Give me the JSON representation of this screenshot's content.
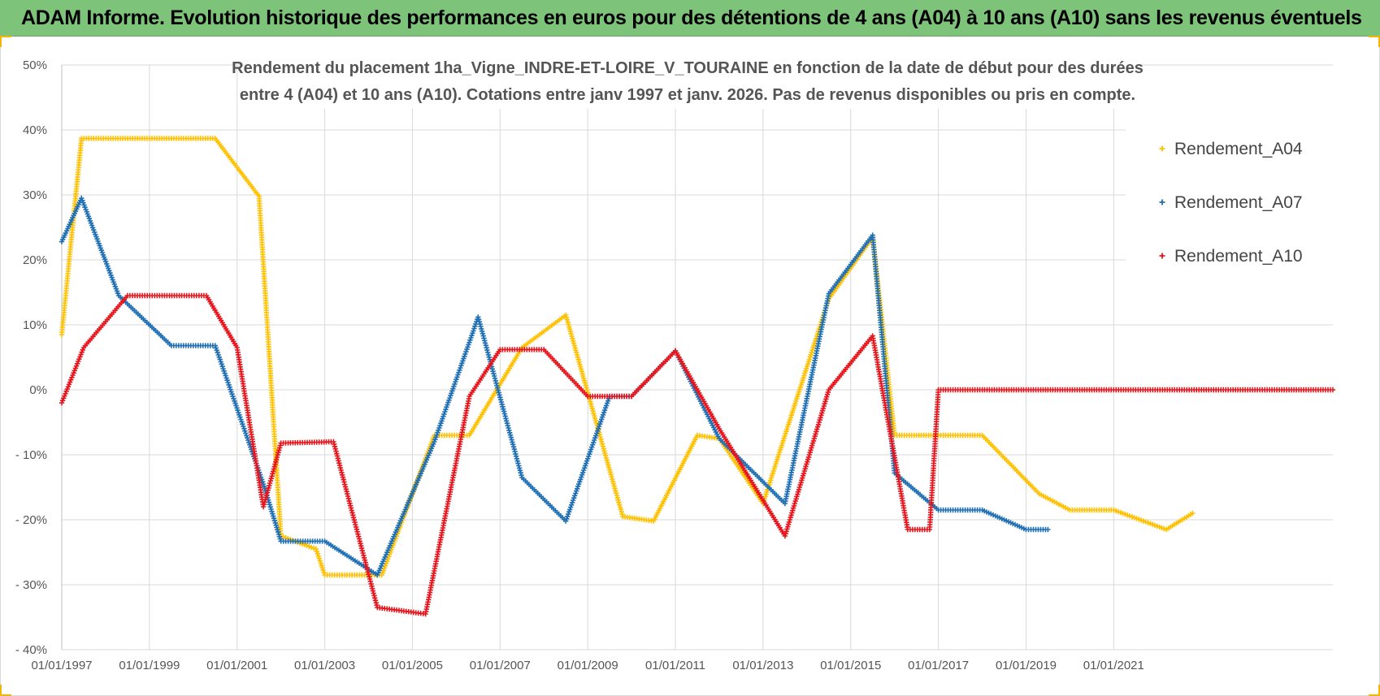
{
  "header": {
    "title": "ADAM Informe. Evolution historique des performances en euros pour des détentions de 4 ans (A04) à 10 ans (A10) sans les revenus éventuels"
  },
  "chart_data": {
    "type": "scatter",
    "title_lines": [
      "Rendement du placement 1ha_Vigne_INDRE-ET-LOIRE_V_TOURAINE en fonction de la date de début pour des durées",
      "entre 4 (A04) et 10 ans (A10).  Cotations entre janv 1997 et janv. 2026. Pas de revenus disponibles ou pris en compte."
    ],
    "xlabel": "",
    "ylabel": "",
    "xlim": [
      1997.0,
      2026.0
    ],
    "ylim": [
      -40,
      50
    ],
    "x_ticks": [
      1997,
      1999,
      2001,
      2003,
      2005,
      2007,
      2009,
      2011,
      2013,
      2015,
      2017,
      2019,
      2021
    ],
    "x_tick_labels": [
      "01/01/1997",
      "01/01/1999",
      "01/01/2001",
      "01/01/2003",
      "01/01/2005",
      "01/01/2007",
      "01/01/2009",
      "01/01/2011",
      "01/01/2013",
      "01/01/2015",
      "01/01/2017",
      "01/01/2019",
      "01/01/2021"
    ],
    "y_ticks": [
      50,
      40,
      30,
      20,
      10,
      0,
      -10,
      -20,
      -30,
      -40
    ],
    "y_tick_labels": [
      "50%",
      "40%",
      "30%",
      "20%",
      "10%",
      "0%",
      "- 10%",
      "- 20%",
      "- 30%",
      "- 40%"
    ],
    "grid": true,
    "legend_position": "top-right",
    "marker": "+",
    "series": [
      {
        "name": "Rendement_A04",
        "color": "#ffc000",
        "points": [
          [
            1997.0,
            8.5
          ],
          [
            1997.2,
            22
          ],
          [
            1997.45,
            38.7
          ],
          [
            2000.5,
            38.7
          ],
          [
            2001.5,
            29.8
          ],
          [
            2002.0,
            -22.5
          ],
          [
            2002.8,
            -24.5
          ],
          [
            2003.0,
            -28.5
          ],
          [
            2004.3,
            -28.5
          ],
          [
            2005.5,
            -7
          ],
          [
            2006.3,
            -7
          ],
          [
            2007.5,
            6.5
          ],
          [
            2008.5,
            11.5
          ],
          [
            2009.8,
            -19.5
          ],
          [
            2010.5,
            -20.2
          ],
          [
            2011.5,
            -7
          ],
          [
            2012.0,
            -7.5
          ],
          [
            2013.0,
            -17.5
          ],
          [
            2014.5,
            14
          ],
          [
            2015.5,
            23.5
          ],
          [
            2016.0,
            -7
          ],
          [
            2017.0,
            -7
          ],
          [
            2018.0,
            -7
          ],
          [
            2019.3,
            -16
          ],
          [
            2020.0,
            -18.5
          ],
          [
            2021.0,
            -18.5
          ],
          [
            2022.2,
            -21.5
          ],
          [
            2022.8,
            -19
          ]
        ]
      },
      {
        "name": "Rendement_A07",
        "color": "#1f6fb4",
        "points": [
          [
            1997.0,
            22.8
          ],
          [
            1997.45,
            29.5
          ],
          [
            1998.3,
            14.5
          ],
          [
            1999.5,
            6.8
          ],
          [
            2000.5,
            6.8
          ],
          [
            2001.6,
            -14.5
          ],
          [
            2002.0,
            -23.3
          ],
          [
            2003.0,
            -23.3
          ],
          [
            2004.2,
            -28.5
          ],
          [
            2005.5,
            -8
          ],
          [
            2006.5,
            11.2
          ],
          [
            2007.5,
            -13.5
          ],
          [
            2008.5,
            -20.2
          ],
          [
            2009.5,
            -1
          ],
          [
            2010.0,
            -1
          ],
          [
            2011.0,
            6
          ],
          [
            2012.0,
            -7.5
          ],
          [
            2013.5,
            -17.5
          ],
          [
            2014.5,
            14.8
          ],
          [
            2015.5,
            23.8
          ],
          [
            2016.0,
            -12.8
          ],
          [
            2017.0,
            -18.5
          ],
          [
            2018.0,
            -18.5
          ],
          [
            2019.0,
            -21.5
          ],
          [
            2019.5,
            -21.5
          ]
        ]
      },
      {
        "name": "Rendement_A10",
        "color": "#e8141c",
        "points": [
          [
            1997.0,
            -2
          ],
          [
            1997.5,
            6.5
          ],
          [
            1998.5,
            14.5
          ],
          [
            2000.3,
            14.5
          ],
          [
            2001.0,
            6.5
          ],
          [
            2001.6,
            -18
          ],
          [
            2002.0,
            -8.2
          ],
          [
            2003.2,
            -8
          ],
          [
            2004.2,
            -33.5
          ],
          [
            2005.3,
            -34.5
          ],
          [
            2006.3,
            -1
          ],
          [
            2007.0,
            6.2
          ],
          [
            2008.0,
            6.2
          ],
          [
            2009.0,
            -1
          ],
          [
            2010.0,
            -1
          ],
          [
            2011.0,
            6
          ],
          [
            2012.0,
            -6
          ],
          [
            2013.5,
            -22.5
          ],
          [
            2014.5,
            0
          ],
          [
            2015.5,
            8.3
          ],
          [
            2016.3,
            -21.5
          ],
          [
            2016.8,
            -21.5
          ],
          [
            2017.0,
            0
          ],
          [
            2026.0,
            0
          ]
        ]
      }
    ],
    "legend_entries": [
      "Rendement_A04",
      "Rendement_A07",
      "Rendement_A10"
    ]
  }
}
